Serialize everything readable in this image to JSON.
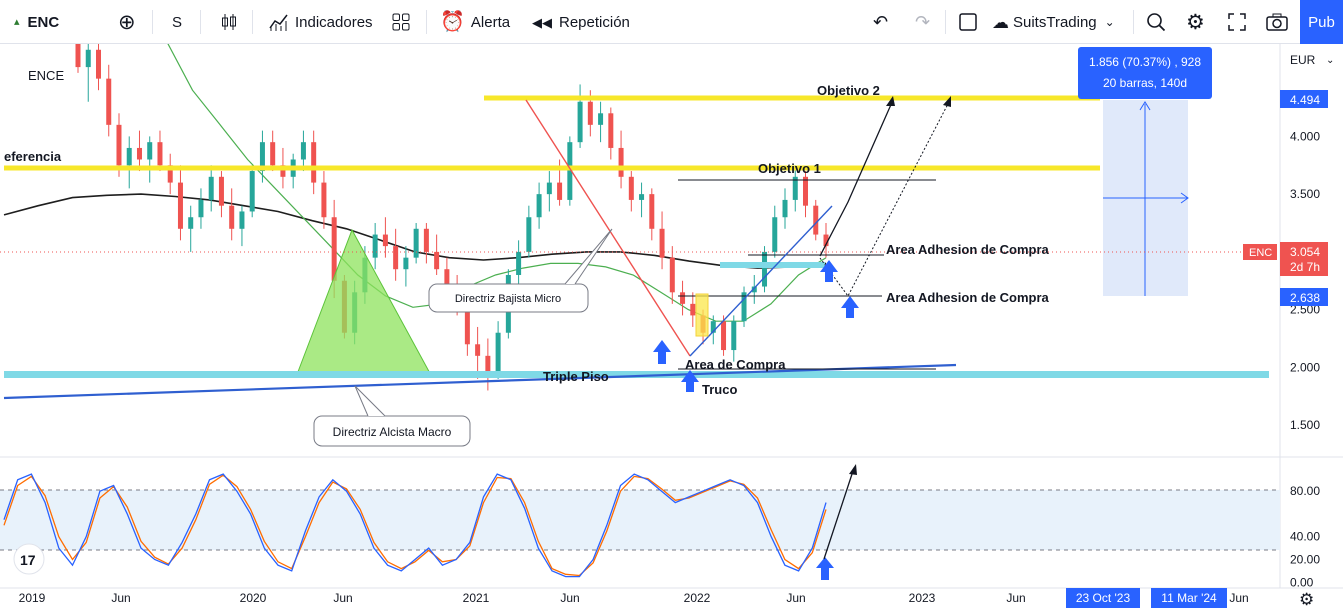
{
  "toolbar": {
    "symbol": "ENC",
    "interval": "S",
    "indicators": "Indicadores",
    "alert": "Alerta",
    "replay": "Repetición",
    "layout_name": "SuitsTrading",
    "publish": "Pub"
  },
  "colors": {
    "up": "#26a69a",
    "down": "#ef5350",
    "target_line": "#f7e72a",
    "support_line": "#7fd9e6",
    "trendline": "#2f5fd0",
    "ma_black": "#1e1e1e",
    "ma_green": "#4caf50",
    "stoch_k": "#2962ff",
    "stoch_d": "#ff6d00",
    "arrow_blue": "#2962ff",
    "price_badge": "#ef5350",
    "axis_badge": "#2962ff"
  },
  "chart_data": [
    {
      "type": "candlestick",
      "symbol_label": "ENCE",
      "currency": "EUR",
      "y_ticks": [
        "1.500",
        "2.000",
        "2.500",
        "3.000",
        "3.500",
        "4.000",
        "4.494"
      ],
      "x_ticks": [
        "2019",
        "Jun",
        "2020",
        "Jun",
        "2021",
        "Jun",
        "2022",
        "Jun",
        "2023",
        "Jun",
        "Jun"
      ],
      "ylim": [
        1.25,
        4.8
      ],
      "last_price": "3.054",
      "last_price_countdown": "2d 7h",
      "axis_marks": [
        "4.494",
        "2.638"
      ],
      "date_marks": [
        "23 Oct '23",
        "11 Mar '24"
      ],
      "measure": {
        "line1": "1.856 (70.37%) , 928",
        "line2": "20 barras, 140d"
      },
      "annotations": [
        "Objetivo 2",
        "Objetivo 1",
        "eferencia",
        "Area Adhesion de Compra",
        "Area Adhesion de Compra",
        "Area de Compra",
        "Triple Piso",
        "Truco",
        "Directriz Bajista Micro",
        "Directriz Alcista Macro"
      ],
      "levels": [
        {
          "name": "Objetivo 2",
          "value": 4.5
        },
        {
          "name": "eferencia",
          "value": 3.85
        },
        {
          "name": "Triple Piso",
          "value": 1.87
        }
      ],
      "series": [
        {
          "name": "ENCE",
          "values": [
            [
              4.9,
              4.95,
              4.55,
              4.6
            ],
            [
              4.6,
              4.85,
              4.3,
              4.75
            ],
            [
              4.75,
              4.8,
              4.4,
              4.5
            ],
            [
              4.5,
              4.62,
              4.0,
              4.1
            ],
            [
              4.1,
              4.2,
              3.65,
              3.75
            ],
            [
              3.75,
              4.0,
              3.55,
              3.9
            ],
            [
              3.9,
              4.05,
              3.7,
              3.8
            ],
            [
              3.8,
              4.0,
              3.6,
              3.95
            ],
            [
              3.95,
              4.05,
              3.7,
              3.75
            ],
            [
              3.75,
              3.85,
              3.5,
              3.6
            ],
            [
              3.6,
              3.75,
              3.1,
              3.2
            ],
            [
              3.2,
              3.4,
              3.0,
              3.3
            ],
            [
              3.3,
              3.55,
              3.2,
              3.45
            ],
            [
              3.45,
              3.75,
              3.35,
              3.65
            ],
            [
              3.65,
              3.7,
              3.3,
              3.4
            ],
            [
              3.4,
              3.55,
              3.1,
              3.2
            ],
            [
              3.2,
              3.4,
              3.05,
              3.35
            ],
            [
              3.35,
              3.75,
              3.3,
              3.7
            ],
            [
              3.7,
              4.05,
              3.6,
              3.95
            ],
            [
              3.95,
              4.05,
              3.7,
              3.75
            ],
            [
              3.75,
              3.9,
              3.55,
              3.65
            ],
            [
              3.65,
              3.85,
              3.55,
              3.8
            ],
            [
              3.8,
              4.05,
              3.7,
              3.95
            ],
            [
              3.95,
              4.05,
              3.5,
              3.6
            ],
            [
              3.6,
              3.7,
              3.2,
              3.3
            ],
            [
              3.3,
              3.45,
              2.6,
              2.75
            ],
            [
              2.75,
              2.8,
              2.25,
              2.3
            ],
            [
              2.3,
              2.75,
              2.2,
              2.65
            ],
            [
              2.65,
              3.05,
              2.55,
              2.95
            ],
            [
              2.95,
              3.25,
              2.85,
              3.15
            ],
            [
              3.15,
              3.3,
              2.95,
              3.05
            ],
            [
              3.05,
              3.2,
              2.75,
              2.85
            ],
            [
              2.85,
              3.05,
              2.7,
              2.95
            ],
            [
              2.95,
              3.25,
              2.9,
              3.2
            ],
            [
              3.2,
              3.25,
              2.9,
              3.0
            ],
            [
              3.0,
              3.15,
              2.8,
              2.85
            ],
            [
              2.85,
              2.95,
              2.55,
              2.65
            ],
            [
              2.65,
              2.8,
              2.45,
              2.55
            ],
            [
              2.55,
              2.7,
              2.1,
              2.2
            ],
            [
              2.2,
              2.35,
              1.9,
              2.1
            ],
            [
              2.1,
              2.25,
              1.8,
              1.95
            ],
            [
              1.95,
              2.4,
              1.9,
              2.3
            ],
            [
              2.3,
              2.85,
              2.25,
              2.8
            ],
            [
              2.8,
              3.1,
              2.7,
              3.0
            ],
            [
              3.0,
              3.4,
              2.95,
              3.3
            ],
            [
              3.3,
              3.6,
              3.2,
              3.5
            ],
            [
              3.5,
              3.7,
              3.35,
              3.6
            ],
            [
              3.6,
              3.8,
              3.4,
              3.45
            ],
            [
              3.45,
              4.0,
              3.4,
              3.95
            ],
            [
              3.95,
              4.45,
              3.9,
              4.3
            ],
            [
              4.3,
              4.4,
              4.0,
              4.1
            ],
            [
              4.1,
              4.3,
              3.95,
              4.2
            ],
            [
              4.2,
              4.25,
              3.8,
              3.9
            ],
            [
              3.9,
              4.05,
              3.55,
              3.65
            ],
            [
              3.65,
              3.7,
              3.35,
              3.45
            ],
            [
              3.45,
              3.6,
              3.3,
              3.5
            ],
            [
              3.5,
              3.55,
              3.1,
              3.2
            ],
            [
              3.2,
              3.35,
              2.85,
              2.95
            ],
            [
              2.95,
              3.05,
              2.55,
              2.65
            ],
            [
              2.65,
              2.75,
              2.45,
              2.55
            ],
            [
              2.55,
              2.65,
              2.35,
              2.45
            ],
            [
              2.45,
              2.5,
              2.2,
              2.3
            ],
            [
              2.3,
              2.45,
              2.2,
              2.4
            ],
            [
              2.4,
              2.45,
              2.1,
              2.15
            ],
            [
              2.15,
              2.45,
              2.05,
              2.4
            ],
            [
              2.4,
              2.7,
              2.35,
              2.65
            ],
            [
              2.65,
              2.8,
              2.55,
              2.7
            ],
            [
              2.7,
              3.05,
              2.65,
              3.0
            ],
            [
              3.0,
              3.4,
              2.95,
              3.3
            ],
            [
              3.3,
              3.55,
              3.2,
              3.45
            ],
            [
              3.45,
              3.75,
              3.35,
              3.65
            ],
            [
              3.65,
              3.7,
              3.3,
              3.4
            ],
            [
              3.4,
              3.45,
              3.1,
              3.15
            ],
            [
              3.15,
              3.25,
              2.95,
              3.05
            ]
          ]
        },
        {
          "name": "MA black",
          "values": [
            3.32,
            3.4,
            3.47,
            3.49,
            3.5,
            3.48,
            3.45,
            3.4,
            3.35,
            3.27,
            3.2,
            3.1,
            3.0,
            2.95,
            2.93,
            2.95,
            2.98,
            3.0,
            3.0,
            2.97,
            2.92,
            2.88,
            2.86,
            2.87,
            2.9
          ]
        },
        {
          "name": "MA green",
          "values": [
            4.85,
            4.4,
            4.1,
            3.8,
            3.55,
            3.3,
            3.05,
            2.8,
            2.62,
            2.52,
            2.55,
            2.7,
            2.8,
            2.86,
            2.9,
            2.9,
            2.87,
            2.8,
            2.65,
            2.5,
            2.4,
            2.4,
            2.55,
            2.8,
            2.95
          ]
        }
      ]
    },
    {
      "type": "line",
      "name": "Stochastic",
      "y_ticks": [
        "80.00",
        "40.00",
        "20.00",
        "0.00"
      ],
      "ylim": [
        -5,
        110
      ],
      "bands": [
        20,
        80
      ],
      "series": [
        {
          "name": "%K",
          "values": [
            55,
            90,
            95,
            70,
            30,
            15,
            40,
            80,
            85,
            60,
            30,
            20,
            15,
            35,
            60,
            90,
            95,
            80,
            60,
            30,
            15,
            10,
            45,
            75,
            90,
            80,
            60,
            30,
            15,
            10,
            20,
            30,
            15,
            20,
            35,
            75,
            95,
            90,
            65,
            30,
            10,
            5,
            5,
            20,
            50,
            85,
            95,
            90,
            80,
            70,
            75,
            80,
            85,
            90,
            85,
            70,
            40,
            15,
            10,
            30,
            70
          ]
        },
        {
          "name": "%D",
          "values": [
            50,
            85,
            93,
            76,
            40,
            20,
            35,
            74,
            84,
            66,
            36,
            22,
            16,
            30,
            55,
            86,
            94,
            84,
            64,
            36,
            18,
            12,
            40,
            70,
            88,
            82,
            64,
            35,
            18,
            12,
            18,
            28,
            18,
            20,
            32,
            70,
            92,
            91,
            70,
            36,
            12,
            7,
            6,
            17,
            45,
            80,
            93,
            91,
            82,
            72,
            74,
            79,
            84,
            89,
            86,
            74,
            46,
            20,
            12,
            26,
            64
          ]
        }
      ]
    }
  ]
}
